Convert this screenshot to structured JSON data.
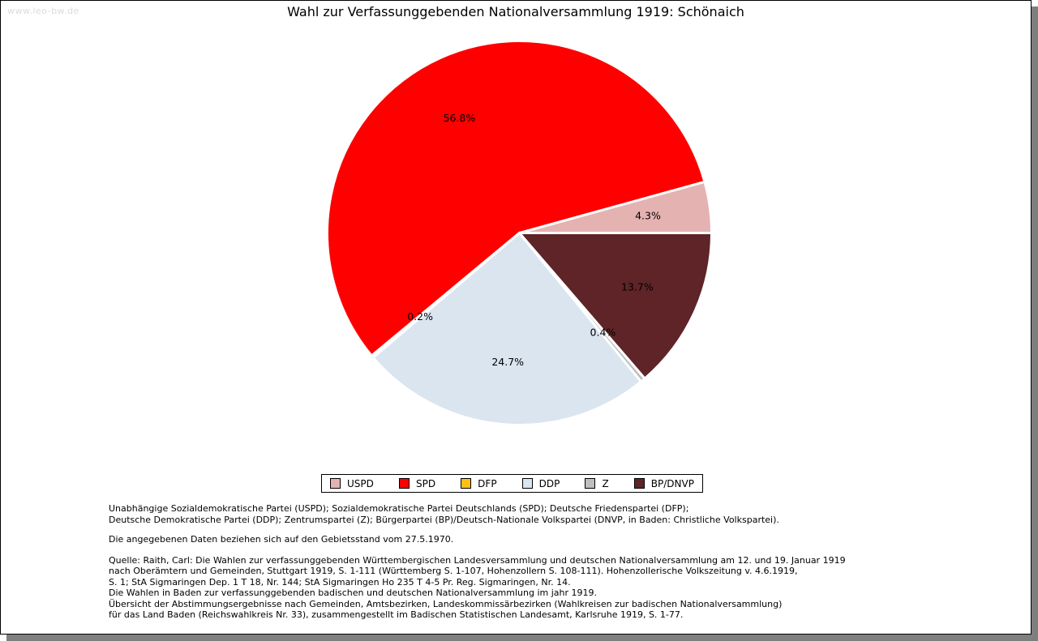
{
  "watermark": "www.leo-bw.de",
  "header": {
    "title": "Wahl zur Verfassunggebenden Nationalversammlung 1919: Schönaich"
  },
  "chart_data": {
    "type": "pie",
    "title": "Wahl zur Verfassunggebenden Nationalversammlung 1919: Schönaich",
    "unit": "percent",
    "start_angle_deg": 0,
    "direction": "counterclockwise",
    "legend_position": "bottom",
    "label_format": "{value}%",
    "slices": [
      {
        "label": "USPD",
        "value": 4.3,
        "color": "#e5b2b2"
      },
      {
        "label": "SPD",
        "value": 56.8,
        "color": "#fe0000"
      },
      {
        "label": "DFP",
        "value": 0.2,
        "color": "#fdc112"
      },
      {
        "label": "DDP",
        "value": 24.7,
        "color": "#dbe5f0"
      },
      {
        "label": "Z",
        "value": 0.4,
        "color": "#bfbfbf"
      },
      {
        "label": "BP/DNVP",
        "value": 13.7,
        "color": "#5e2427"
      }
    ]
  },
  "notes": {
    "party_lines": [
      "Unabhängige Sozialdemokratische Partei (USPD); Sozialdemokratische Partei Deutschlands (SPD); Deutsche Friedenspartei (DFP);",
      "Deutsche Demokratische Partei (DDP); Zentrumspartei (Z); Bürgerpartei (BP)/Deutsch-Nationale Volkspartei (DNVP, in Baden: Christliche Volkspartei)."
    ],
    "gebietsstand": "Die angegebenen Daten beziehen sich auf den Gebietsstand vom 27.5.1970.",
    "source_lines": [
      "Quelle: Raith, Carl: Die Wahlen zur verfassunggebenden Württembergischen Landesversammlung und deutschen Nationalversammlung am 12. und 19. Januar 1919",
      "nach Oberämtern und Gemeinden, Stuttgart 1919, S. 1-111 (Württemberg S. 1-107, Hohenzollern S. 108-111). Hohenzollerische Volkszeitung v. 4.6.1919,",
      "S. 1; StA Sigmaringen Dep. 1 T 18, Nr. 144; StA Sigmaringen Ho 235 T 4-5 Pr. Reg. Sigmaringen, Nr. 14.",
      "Die Wahlen in Baden zur verfassunggebenden badischen und deutschen Nationalversammlung im jahr 1919.",
      "Übersicht der Abstimmungsergebnisse nach Gemeinden, Amtsbezirken, Landeskommissärbezirken (Wahlkreisen zur badischen Nationalversammlung)",
      "für das Land Baden (Reichswahlkreis Nr. 33), zusammengestellt im Badischen Statistischen Landesamt, Karlsruhe 1919, S. 1-77."
    ]
  }
}
